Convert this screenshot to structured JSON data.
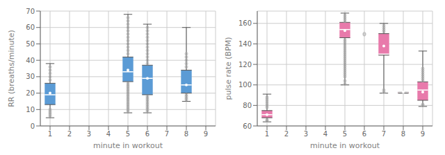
{
  "chart_data": [
    {
      "type": "box",
      "xlabel": "minute in workout",
      "ylabel": "RR (breaths/minute)",
      "xlim": [
        0.5,
        9.5
      ],
      "ylim": [
        0,
        70
      ],
      "xticks": [
        1,
        2,
        3,
        4,
        5,
        6,
        7,
        8,
        9
      ],
      "yticks": [
        0,
        10,
        20,
        30,
        40,
        50,
        60,
        70
      ],
      "grid": true,
      "color": "#5B9BD5",
      "boxes": [
        {
          "x": 1,
          "whislo": 5,
          "q1": 13,
          "med": 19,
          "mean": 20,
          "q3": 26,
          "whishi": 38,
          "fliers": [
            6,
            7,
            8,
            9,
            10,
            28,
            30,
            32,
            34,
            36
          ]
        },
        {
          "x": 5,
          "whislo": 8,
          "q1": 27,
          "med": 33,
          "mean": 34,
          "q3": 42,
          "whishi": 68,
          "fliers": [
            9,
            10,
            11,
            12,
            13,
            14,
            15,
            16,
            17,
            18,
            19,
            20,
            21,
            22,
            23,
            24,
            25,
            26,
            44,
            46,
            48,
            50,
            52,
            54,
            56,
            58,
            60,
            62,
            64,
            66
          ]
        },
        {
          "x": 6,
          "whislo": 8,
          "q1": 19,
          "med": 29,
          "mean": 29,
          "q3": 37,
          "whishi": 62,
          "fliers": [
            9,
            10,
            11,
            12,
            13,
            14,
            15,
            16,
            17,
            18,
            38,
            40,
            42,
            44,
            46,
            48,
            50,
            52,
            54,
            56,
            58,
            60
          ]
        },
        {
          "x": 8,
          "whislo": 15,
          "q1": 20,
          "med": 25,
          "mean": 25,
          "q3": 34,
          "whishi": 60,
          "fliers": [
            16,
            17,
            18,
            19,
            36,
            38,
            40,
            42,
            44
          ]
        }
      ]
    },
    {
      "type": "box",
      "xlabel": "minute in workout",
      "ylabel": "pulse rate (BPM)",
      "xlim": [
        0.5,
        9.5
      ],
      "ylim": [
        60,
        172
      ],
      "xticks": [
        1,
        2,
        3,
        4,
        5,
        6,
        7,
        8,
        9
      ],
      "yticks": [
        60,
        80,
        100,
        120,
        140,
        160
      ],
      "grid": true,
      "color": "#E87AAB",
      "boxes": [
        {
          "x": 1,
          "whislo": 64,
          "q1": 68,
          "med": 71,
          "mean": 71,
          "q3": 75,
          "whishi": 91,
          "fliers": [
            65,
            66,
            78,
            80,
            82,
            84,
            86,
            88
          ]
        },
        {
          "x": 5,
          "whislo": 100,
          "q1": 146,
          "med": 154,
          "mean": 153,
          "q3": 161,
          "whishi": 170,
          "fliers": [
            101,
            104,
            108,
            110,
            112,
            114,
            116,
            118,
            120,
            122,
            124,
            126,
            128,
            130,
            132,
            134,
            136,
            138,
            140,
            142,
            144,
            162,
            164,
            166,
            168
          ]
        },
        {
          "x": 6,
          "whislo": null,
          "q1": null,
          "med": null,
          "mean": null,
          "q3": null,
          "whishi": null,
          "fliers": [
            149,
            150
          ]
        },
        {
          "x": 7,
          "whislo": 92,
          "q1": 129,
          "med": 130,
          "mean": 138,
          "q3": 150,
          "whishi": 160,
          "fliers": [
            93,
            95,
            152,
            154,
            156,
            158
          ]
        },
        {
          "x": 8,
          "whislo": 92,
          "q1": 92,
          "med": 93,
          "mean": 93,
          "q3": 93,
          "whishi": 93,
          "fliers": []
        },
        {
          "x": 9,
          "whislo": 79,
          "q1": 85,
          "med": 95,
          "mean": 93,
          "q3": 103,
          "whishi": 133,
          "fliers": [
            80,
            81,
            104,
            106,
            108,
            110,
            112,
            114,
            116
          ]
        }
      ]
    }
  ]
}
